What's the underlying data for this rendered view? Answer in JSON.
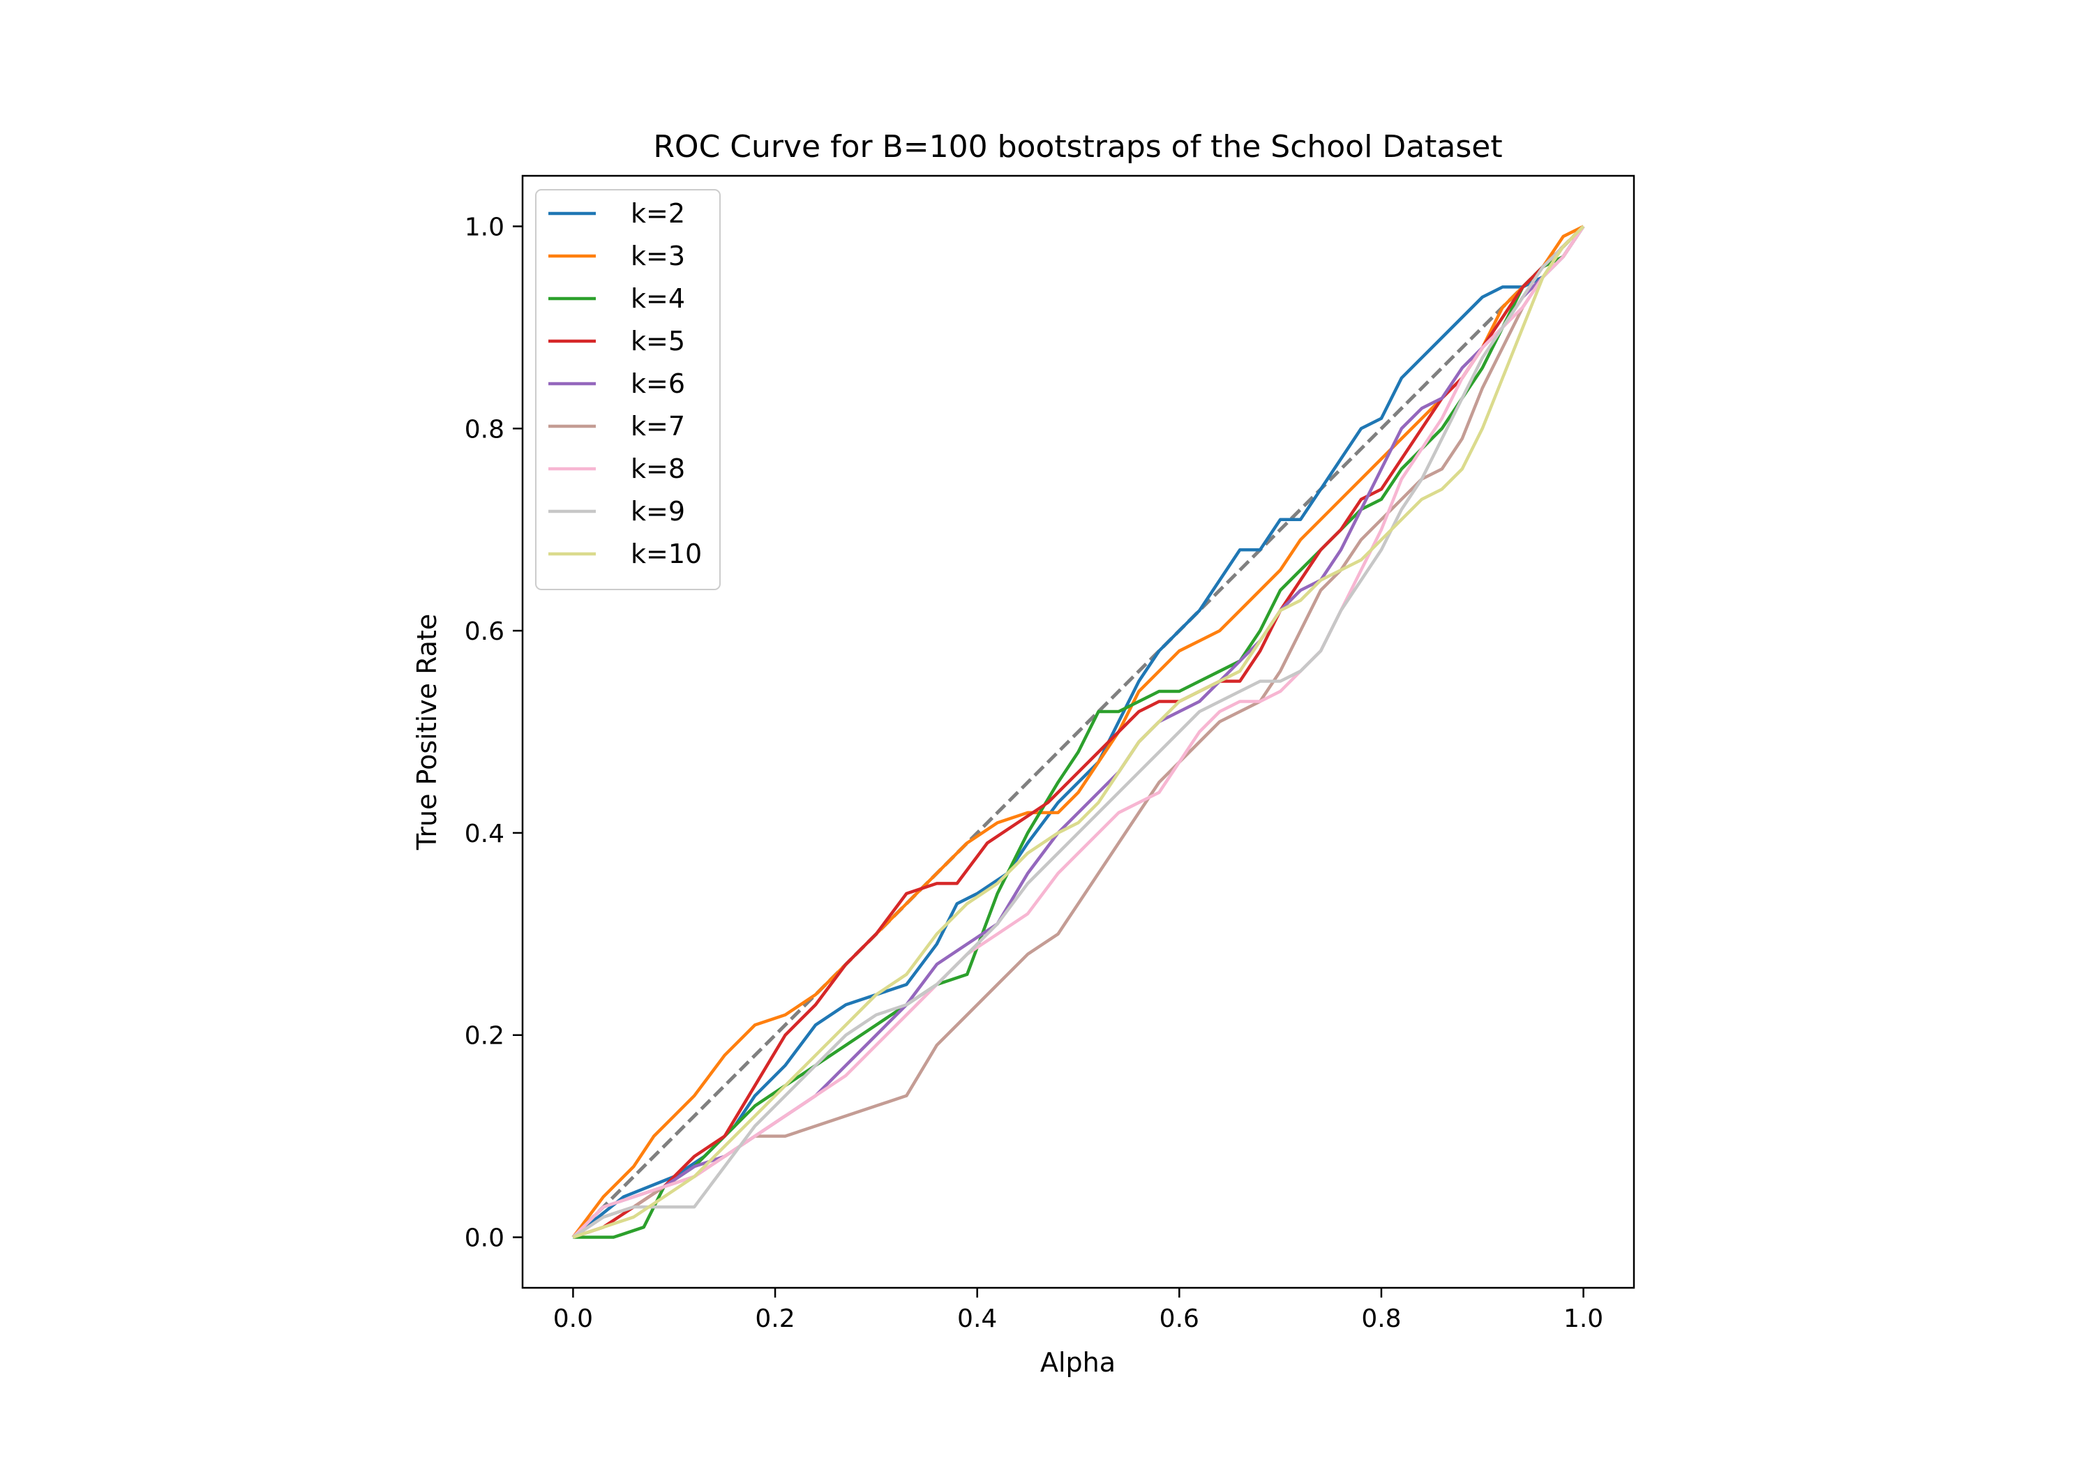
{
  "chart_data": {
    "type": "line",
    "title": "ROC Curve for B=100 bootstraps of the School Dataset",
    "xlabel": "Alpha",
    "ylabel": "True Positive Rate",
    "xlim": [
      -0.05,
      1.05
    ],
    "ylim": [
      -0.05,
      1.05
    ],
    "xticks": [
      0.0,
      0.2,
      0.4,
      0.6,
      0.8,
      1.0
    ],
    "yticks": [
      0.0,
      0.2,
      0.4,
      0.6,
      0.8,
      1.0
    ],
    "tick_labels_x": [
      "0.0",
      "0.2",
      "0.4",
      "0.6",
      "0.8",
      "1.0"
    ],
    "tick_labels_y": [
      "0.0",
      "0.2",
      "0.4",
      "0.6",
      "0.8",
      "1.0"
    ],
    "grid": false,
    "legend_position": "top-left",
    "reference_line": {
      "x": [
        0,
        1
      ],
      "y": [
        0,
        1
      ],
      "color": "#808080",
      "style": "dashed"
    },
    "series": [
      {
        "name": "k=2",
        "color": "#1f77b4",
        "x": [
          0,
          0.05,
          0.1,
          0.13,
          0.16,
          0.18,
          0.21,
          0.24,
          0.27,
          0.3,
          0.33,
          0.36,
          0.38,
          0.4,
          0.43,
          0.45,
          0.48,
          0.5,
          0.52,
          0.54,
          0.56,
          0.58,
          0.6,
          0.62,
          0.64,
          0.66,
          0.68,
          0.7,
          0.72,
          0.74,
          0.76,
          0.78,
          0.8,
          0.82,
          0.84,
          0.86,
          0.88,
          0.9,
          0.92,
          0.94,
          0.96,
          0.98,
          1.0
        ],
        "y": [
          0,
          0.04,
          0.06,
          0.08,
          0.11,
          0.14,
          0.17,
          0.21,
          0.23,
          0.24,
          0.25,
          0.29,
          0.33,
          0.34,
          0.36,
          0.39,
          0.43,
          0.45,
          0.47,
          0.51,
          0.55,
          0.58,
          0.6,
          0.62,
          0.65,
          0.68,
          0.68,
          0.71,
          0.71,
          0.74,
          0.77,
          0.8,
          0.81,
          0.85,
          0.87,
          0.89,
          0.91,
          0.93,
          0.94,
          0.94,
          0.95,
          0.97,
          1.0
        ]
      },
      {
        "name": "k=3",
        "color": "#ff7f0e",
        "x": [
          0,
          0.03,
          0.06,
          0.08,
          0.1,
          0.12,
          0.15,
          0.18,
          0.21,
          0.24,
          0.27,
          0.3,
          0.33,
          0.36,
          0.39,
          0.42,
          0.45,
          0.48,
          0.5,
          0.52,
          0.54,
          0.56,
          0.58,
          0.6,
          0.62,
          0.64,
          0.66,
          0.68,
          0.7,
          0.72,
          0.74,
          0.76,
          0.78,
          0.8,
          0.82,
          0.84,
          0.86,
          0.88,
          0.9,
          0.92,
          0.94,
          0.96,
          0.98,
          1.0
        ],
        "y": [
          0,
          0.04,
          0.07,
          0.1,
          0.12,
          0.14,
          0.18,
          0.21,
          0.22,
          0.24,
          0.27,
          0.3,
          0.33,
          0.36,
          0.39,
          0.41,
          0.42,
          0.42,
          0.44,
          0.47,
          0.5,
          0.54,
          0.56,
          0.58,
          0.59,
          0.6,
          0.62,
          0.64,
          0.66,
          0.69,
          0.71,
          0.73,
          0.75,
          0.77,
          0.79,
          0.81,
          0.83,
          0.85,
          0.88,
          0.92,
          0.94,
          0.96,
          0.99,
          1.0
        ]
      },
      {
        "name": "k=4",
        "color": "#2ca02c",
        "x": [
          0,
          0.04,
          0.07,
          0.09,
          0.12,
          0.15,
          0.18,
          0.21,
          0.24,
          0.27,
          0.3,
          0.33,
          0.36,
          0.39,
          0.42,
          0.45,
          0.48,
          0.5,
          0.52,
          0.54,
          0.56,
          0.58,
          0.6,
          0.62,
          0.64,
          0.66,
          0.68,
          0.7,
          0.72,
          0.74,
          0.76,
          0.78,
          0.8,
          0.82,
          0.84,
          0.86,
          0.88,
          0.9,
          0.92,
          0.94,
          0.96,
          0.98,
          1.0
        ],
        "y": [
          0,
          0.0,
          0.01,
          0.05,
          0.07,
          0.1,
          0.13,
          0.15,
          0.17,
          0.19,
          0.21,
          0.23,
          0.25,
          0.26,
          0.34,
          0.4,
          0.45,
          0.48,
          0.52,
          0.52,
          0.53,
          0.54,
          0.54,
          0.55,
          0.56,
          0.57,
          0.6,
          0.64,
          0.66,
          0.68,
          0.7,
          0.72,
          0.73,
          0.76,
          0.78,
          0.8,
          0.83,
          0.86,
          0.9,
          0.94,
          0.96,
          0.97,
          1.0
        ]
      },
      {
        "name": "k=5",
        "color": "#d62728",
        "x": [
          0,
          0.03,
          0.06,
          0.09,
          0.12,
          0.15,
          0.18,
          0.21,
          0.24,
          0.27,
          0.3,
          0.33,
          0.36,
          0.38,
          0.41,
          0.44,
          0.47,
          0.5,
          0.52,
          0.54,
          0.56,
          0.58,
          0.6,
          0.62,
          0.64,
          0.66,
          0.68,
          0.7,
          0.72,
          0.74,
          0.76,
          0.78,
          0.8,
          0.82,
          0.84,
          0.86,
          0.88,
          0.9,
          0.92,
          0.94,
          0.96,
          0.98,
          1.0
        ],
        "y": [
          0,
          0.01,
          0.03,
          0.05,
          0.08,
          0.1,
          0.15,
          0.2,
          0.23,
          0.27,
          0.3,
          0.34,
          0.35,
          0.35,
          0.39,
          0.41,
          0.43,
          0.46,
          0.48,
          0.5,
          0.52,
          0.53,
          0.53,
          0.54,
          0.55,
          0.55,
          0.58,
          0.62,
          0.65,
          0.68,
          0.7,
          0.73,
          0.74,
          0.77,
          0.8,
          0.83,
          0.85,
          0.88,
          0.91,
          0.94,
          0.96,
          0.98,
          1.0
        ]
      },
      {
        "name": "k=6",
        "color": "#9467bd",
        "x": [
          0,
          0.03,
          0.06,
          0.09,
          0.12,
          0.15,
          0.18,
          0.21,
          0.24,
          0.27,
          0.3,
          0.33,
          0.36,
          0.39,
          0.42,
          0.45,
          0.48,
          0.5,
          0.52,
          0.54,
          0.56,
          0.58,
          0.6,
          0.62,
          0.64,
          0.66,
          0.68,
          0.7,
          0.72,
          0.74,
          0.76,
          0.78,
          0.8,
          0.82,
          0.84,
          0.86,
          0.88,
          0.9,
          0.92,
          0.94,
          0.96,
          0.98,
          1.0
        ],
        "y": [
          0,
          0.03,
          0.04,
          0.05,
          0.07,
          0.08,
          0.1,
          0.12,
          0.14,
          0.17,
          0.2,
          0.23,
          0.27,
          0.29,
          0.31,
          0.36,
          0.4,
          0.42,
          0.44,
          0.46,
          0.49,
          0.51,
          0.52,
          0.53,
          0.55,
          0.57,
          0.59,
          0.62,
          0.64,
          0.65,
          0.68,
          0.72,
          0.76,
          0.8,
          0.82,
          0.83,
          0.86,
          0.88,
          0.9,
          0.93,
          0.95,
          0.97,
          1.0
        ]
      },
      {
        "name": "k=7",
        "color": "#c49c94",
        "x": [
          0,
          0.03,
          0.06,
          0.09,
          0.12,
          0.15,
          0.18,
          0.21,
          0.24,
          0.27,
          0.3,
          0.33,
          0.36,
          0.39,
          0.42,
          0.45,
          0.48,
          0.5,
          0.52,
          0.54,
          0.56,
          0.58,
          0.6,
          0.62,
          0.64,
          0.66,
          0.68,
          0.7,
          0.72,
          0.74,
          0.76,
          0.78,
          0.8,
          0.82,
          0.84,
          0.86,
          0.88,
          0.9,
          0.92,
          0.94,
          0.96,
          0.98,
          1.0
        ],
        "y": [
          0,
          0.02,
          0.03,
          0.05,
          0.06,
          0.08,
          0.1,
          0.1,
          0.11,
          0.12,
          0.13,
          0.14,
          0.19,
          0.22,
          0.25,
          0.28,
          0.3,
          0.33,
          0.36,
          0.39,
          0.42,
          0.45,
          0.47,
          0.49,
          0.51,
          0.52,
          0.53,
          0.56,
          0.6,
          0.64,
          0.66,
          0.69,
          0.71,
          0.73,
          0.75,
          0.76,
          0.79,
          0.84,
          0.88,
          0.92,
          0.95,
          0.97,
          1.0
        ]
      },
      {
        "name": "k=8",
        "color": "#f7b6d2",
        "x": [
          0,
          0.03,
          0.06,
          0.09,
          0.12,
          0.15,
          0.18,
          0.21,
          0.24,
          0.27,
          0.3,
          0.33,
          0.36,
          0.39,
          0.42,
          0.45,
          0.48,
          0.5,
          0.52,
          0.54,
          0.56,
          0.58,
          0.6,
          0.62,
          0.64,
          0.66,
          0.68,
          0.7,
          0.72,
          0.74,
          0.76,
          0.78,
          0.8,
          0.82,
          0.84,
          0.86,
          0.88,
          0.9,
          0.92,
          0.94,
          0.96,
          0.98,
          1.0
        ],
        "y": [
          0,
          0.03,
          0.04,
          0.05,
          0.06,
          0.08,
          0.1,
          0.12,
          0.14,
          0.16,
          0.19,
          0.22,
          0.25,
          0.28,
          0.3,
          0.32,
          0.36,
          0.38,
          0.4,
          0.42,
          0.43,
          0.44,
          0.47,
          0.5,
          0.52,
          0.53,
          0.53,
          0.54,
          0.56,
          0.58,
          0.62,
          0.66,
          0.7,
          0.75,
          0.78,
          0.81,
          0.85,
          0.88,
          0.9,
          0.92,
          0.95,
          0.97,
          1.0
        ]
      },
      {
        "name": "k=9",
        "color": "#c7c7c7",
        "x": [
          0,
          0.03,
          0.06,
          0.09,
          0.12,
          0.15,
          0.18,
          0.21,
          0.24,
          0.27,
          0.3,
          0.33,
          0.36,
          0.39,
          0.42,
          0.45,
          0.48,
          0.5,
          0.52,
          0.54,
          0.56,
          0.58,
          0.6,
          0.62,
          0.64,
          0.66,
          0.68,
          0.7,
          0.72,
          0.74,
          0.76,
          0.78,
          0.8,
          0.82,
          0.84,
          0.86,
          0.88,
          0.9,
          0.92,
          0.94,
          0.96,
          0.98,
          1.0
        ],
        "y": [
          0,
          0.02,
          0.03,
          0.03,
          0.03,
          0.07,
          0.11,
          0.14,
          0.17,
          0.2,
          0.22,
          0.23,
          0.25,
          0.28,
          0.31,
          0.35,
          0.38,
          0.4,
          0.42,
          0.44,
          0.46,
          0.48,
          0.5,
          0.52,
          0.53,
          0.54,
          0.55,
          0.55,
          0.56,
          0.58,
          0.62,
          0.65,
          0.68,
          0.72,
          0.75,
          0.79,
          0.83,
          0.87,
          0.9,
          0.93,
          0.96,
          0.98,
          1.0
        ]
      },
      {
        "name": "k=10",
        "color": "#dbdb8d",
        "x": [
          0,
          0.03,
          0.06,
          0.09,
          0.12,
          0.15,
          0.18,
          0.21,
          0.24,
          0.27,
          0.3,
          0.33,
          0.36,
          0.39,
          0.42,
          0.45,
          0.48,
          0.5,
          0.52,
          0.54,
          0.56,
          0.58,
          0.6,
          0.62,
          0.64,
          0.66,
          0.68,
          0.7,
          0.72,
          0.74,
          0.76,
          0.78,
          0.8,
          0.82,
          0.84,
          0.86,
          0.88,
          0.9,
          0.92,
          0.94,
          0.96,
          0.98,
          1.0
        ],
        "y": [
          0,
          0.01,
          0.02,
          0.04,
          0.06,
          0.09,
          0.12,
          0.15,
          0.18,
          0.21,
          0.24,
          0.26,
          0.3,
          0.33,
          0.35,
          0.38,
          0.4,
          0.41,
          0.43,
          0.46,
          0.49,
          0.51,
          0.53,
          0.54,
          0.55,
          0.56,
          0.59,
          0.62,
          0.63,
          0.65,
          0.66,
          0.67,
          0.69,
          0.71,
          0.73,
          0.74,
          0.76,
          0.8,
          0.85,
          0.9,
          0.95,
          0.98,
          1.0
        ]
      }
    ]
  }
}
